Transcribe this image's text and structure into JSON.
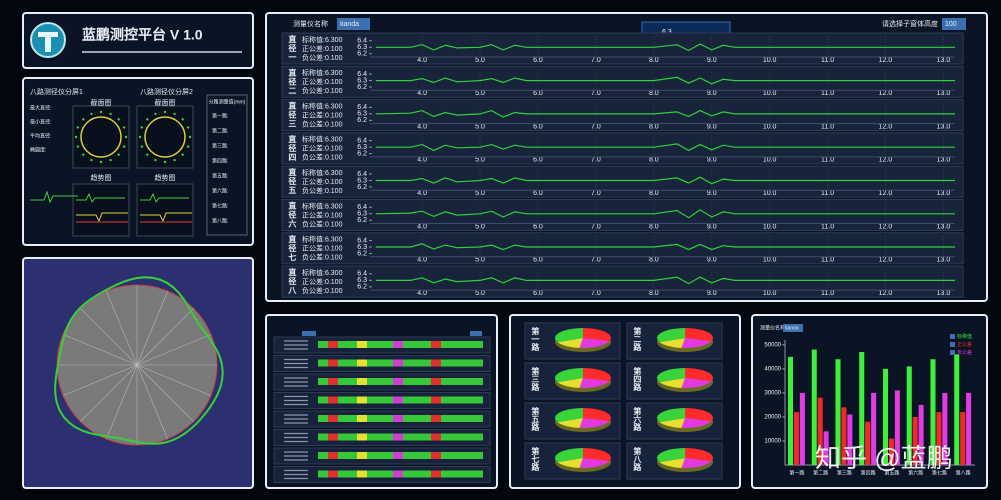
{
  "header": {
    "title": "蓝鹏测控平台  V 1.0"
  },
  "split_panel": {
    "titles": [
      "八路测径仪分屏1",
      "八路测径仪分屏2"
    ],
    "section_label": "截面图",
    "trend_label": "趋势图",
    "readout_labels": [
      "最大直径:",
      "最小直径:",
      "平均直径:",
      "椭圆度:"
    ],
    "channel_header": "分路测量值(mm)",
    "channel_labels": [
      "第一路:",
      "第二路:",
      "第三路:",
      "第四路:",
      "第五路:",
      "第六路:",
      "第七路:",
      "第八路:"
    ]
  },
  "main": {
    "instrument_label": "测量仪名称",
    "instrument": "tianda",
    "height_label": "请选择子窗体高度",
    "height": "100",
    "popup": "6.3"
  },
  "bar_panel": {
    "instrument_label": "测量仪名称",
    "instrument": "tianda"
  },
  "watermark": "知乎 @蓝鹏",
  "chart_data": [
    {
      "type": "line",
      "spec_labels": [
        "标称值:6.300",
        "正公差:0.100",
        "负公差:0.100"
      ],
      "xlim": [
        3.1,
        13.2
      ],
      "ylim": [
        6.15,
        6.45
      ],
      "xticks": [
        {
          "value": 4,
          "label": "4.0"
        },
        {
          "value": 5,
          "label": "5.0"
        },
        {
          "value": 6,
          "label": "6.0"
        },
        {
          "value": 7,
          "label": "7.0"
        },
        {
          "value": 8,
          "label": "8.0"
        },
        {
          "value": 9,
          "label": "9.0"
        },
        {
          "value": 10,
          "label": "10.0"
        },
        {
          "value": 11,
          "label": "11.0"
        },
        {
          "value": 12,
          "label": "12.0"
        },
        {
          "value": 13,
          "label": "13.0"
        }
      ],
      "yticks": [
        6.4,
        6.3,
        6.2
      ],
      "x": [
        3.2,
        3.8,
        4.0,
        4.2,
        4.4,
        4.6,
        5.0,
        5.2,
        5.4,
        5.6,
        5.8,
        6.2,
        7.0,
        8.0,
        8.4,
        8.6,
        8.8,
        9.0,
        9.2,
        9.4,
        10.0,
        11.0,
        12.0,
        13.2
      ],
      "series": [
        {
          "name": "直径一",
          "color": "#2fd13a",
          "values": [
            6.3,
            6.3,
            6.34,
            6.26,
            6.33,
            6.29,
            6.3,
            6.34,
            6.26,
            6.33,
            6.3,
            6.3,
            6.3,
            6.3,
            6.34,
            6.25,
            6.35,
            6.26,
            6.33,
            6.3,
            6.3,
            6.3,
            6.3,
            6.3
          ]
        },
        {
          "name": "直径二",
          "color": "#2fd13a",
          "values": [
            6.3,
            6.3,
            6.33,
            6.27,
            6.34,
            6.28,
            6.3,
            6.33,
            6.27,
            6.34,
            6.3,
            6.3,
            6.3,
            6.3,
            6.35,
            6.26,
            6.34,
            6.25,
            6.32,
            6.3,
            6.3,
            6.3,
            6.3,
            6.3
          ]
        },
        {
          "name": "直径三",
          "color": "#2fd13a",
          "values": [
            6.3,
            6.31,
            6.35,
            6.26,
            6.32,
            6.28,
            6.3,
            6.35,
            6.25,
            6.32,
            6.3,
            6.3,
            6.3,
            6.3,
            6.33,
            6.26,
            6.35,
            6.27,
            6.33,
            6.3,
            6.3,
            6.3,
            6.3,
            6.3
          ]
        },
        {
          "name": "直径四",
          "color": "#2fd13a",
          "values": [
            6.3,
            6.3,
            6.34,
            6.25,
            6.33,
            6.29,
            6.3,
            6.34,
            6.27,
            6.33,
            6.3,
            6.3,
            6.3,
            6.3,
            6.35,
            6.25,
            6.34,
            6.26,
            6.33,
            6.3,
            6.3,
            6.3,
            6.3,
            6.3
          ]
        },
        {
          "name": "直径五",
          "color": "#2fd13a",
          "values": [
            6.3,
            6.3,
            6.33,
            6.26,
            6.34,
            6.28,
            6.3,
            6.33,
            6.26,
            6.34,
            6.3,
            6.3,
            6.3,
            6.3,
            6.34,
            6.26,
            6.35,
            6.25,
            6.32,
            6.3,
            6.3,
            6.3,
            6.3,
            6.3
          ]
        },
        {
          "name": "直径六",
          "color": "#2fd13a",
          "values": [
            6.3,
            6.31,
            6.34,
            6.26,
            6.33,
            6.28,
            6.3,
            6.34,
            6.25,
            6.33,
            6.3,
            6.3,
            6.3,
            6.3,
            6.35,
            6.24,
            6.36,
            6.25,
            6.33,
            6.3,
            6.3,
            6.3,
            6.3,
            6.3
          ]
        },
        {
          "name": "直径七",
          "color": "#2fd13a",
          "values": [
            6.3,
            6.3,
            6.35,
            6.27,
            6.33,
            6.29,
            6.3,
            6.33,
            6.26,
            6.33,
            6.3,
            6.3,
            6.3,
            6.3,
            6.34,
            6.26,
            6.34,
            6.26,
            6.32,
            6.3,
            6.3,
            6.3,
            6.3,
            6.3
          ]
        },
        {
          "name": "直径八",
          "color": "#2fd13a",
          "values": [
            6.3,
            6.3,
            6.34,
            6.26,
            6.32,
            6.28,
            6.3,
            6.34,
            6.26,
            6.34,
            6.3,
            6.3,
            6.3,
            6.3,
            6.35,
            6.25,
            6.35,
            6.26,
            6.33,
            6.3,
            6.3,
            6.3,
            6.3,
            6.3
          ]
        }
      ]
    },
    {
      "type": "pie",
      "colors": [
        "#ff2a2a",
        "#e23ae0",
        "#e8e030",
        "#39d43c"
      ],
      "pies": [
        {
          "name": "第一路",
          "values": [
            30,
            22,
            16,
            32
          ]
        },
        {
          "name": "第二路",
          "values": [
            30,
            22,
            16,
            32
          ]
        },
        {
          "name": "第三路",
          "values": [
            30,
            22,
            16,
            32
          ]
        },
        {
          "name": "第四路",
          "values": [
            30,
            22,
            16,
            32
          ]
        },
        {
          "name": "第五路",
          "values": [
            30,
            22,
            16,
            32
          ]
        },
        {
          "name": "第六路",
          "values": [
            30,
            22,
            16,
            32
          ]
        },
        {
          "name": "第七路",
          "values": [
            30,
            22,
            16,
            32
          ]
        },
        {
          "name": "第八路",
          "values": [
            30,
            22,
            16,
            32
          ]
        }
      ]
    },
    {
      "type": "bar",
      "categories": [
        "第一路",
        "第二路",
        "第三路",
        "第四路",
        "第五路",
        "第六路",
        "第七路",
        "第八路"
      ],
      "ylim": [
        0,
        52000
      ],
      "yticks": [
        10000,
        20000,
        30000,
        40000,
        50000
      ],
      "series": [
        {
          "name": "标称值",
          "color": "#3cf03c",
          "values": [
            45000,
            48000,
            44000,
            47000,
            40000,
            41000,
            44000,
            46000
          ]
        },
        {
          "name": "正公差",
          "color": "#f02a2a",
          "values": [
            22000,
            28000,
            24000,
            18000,
            11000,
            20000,
            22000,
            22000
          ]
        },
        {
          "name": "负公差",
          "color": "#e03ce0",
          "values": [
            30000,
            14000,
            21000,
            30000,
            31000,
            25000,
            30000,
            30000
          ]
        }
      ]
    }
  ]
}
